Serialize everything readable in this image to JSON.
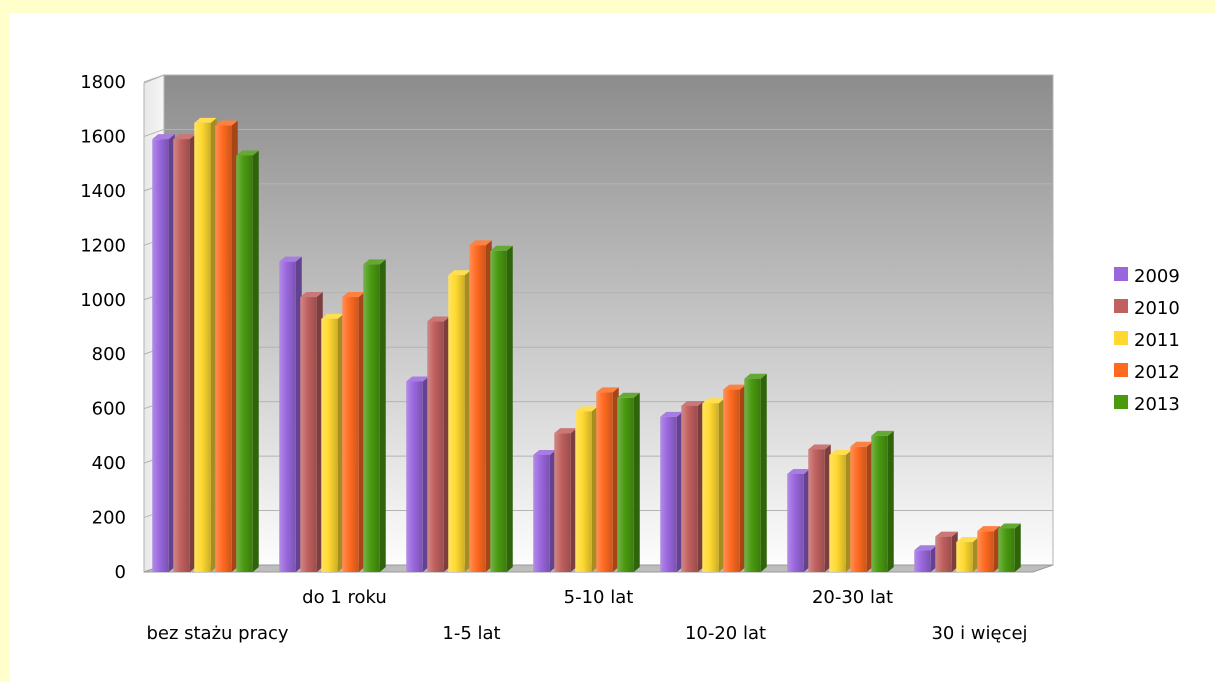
{
  "chart_data": {
    "type": "bar",
    "title": "",
    "xlabel": "",
    "ylabel": "",
    "ylim": [
      0,
      1800
    ],
    "yticks": [
      0,
      200,
      400,
      600,
      800,
      1000,
      1200,
      1400,
      1600,
      1800
    ],
    "grid": true,
    "legend_position": "right",
    "categories": [
      "bez stażu pracy",
      "do 1 roku",
      "1-5 lat",
      "5-10 lat",
      "10-20 lat",
      "20-30 lat",
      "30 i więcej"
    ],
    "series": [
      {
        "name": "2009",
        "color": "#9966dd",
        "values": [
          1590,
          1140,
          700,
          430,
          570,
          360,
          80
        ]
      },
      {
        "name": "2010",
        "color": "#c0605f",
        "values": [
          1590,
          1010,
          920,
          510,
          610,
          450,
          130
        ]
      },
      {
        "name": "2011",
        "color": "#ffd930",
        "values": [
          1650,
          930,
          1090,
          590,
          620,
          430,
          110
        ]
      },
      {
        "name": "2012",
        "color": "#ff6a20",
        "values": [
          1640,
          1010,
          1200,
          660,
          670,
          460,
          150
        ]
      },
      {
        "name": "2013",
        "color": "#4a9a10",
        "values": [
          1530,
          1130,
          1180,
          640,
          710,
          500,
          160
        ]
      }
    ]
  }
}
